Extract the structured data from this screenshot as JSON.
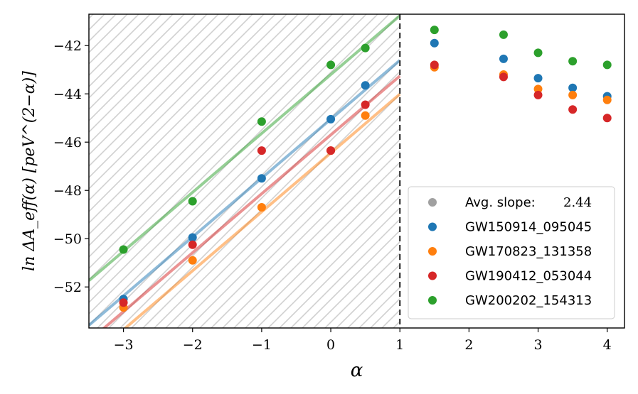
{
  "chart_data": {
    "type": "scatter",
    "title": "",
    "xlabel": "α",
    "ylabel": "ln ΔA_eff(α) [peV^(2−α)]",
    "xlim": [
      -3.5,
      4.25
    ],
    "ylim": [
      -53.7,
      -40.7
    ],
    "xticks": [
      -3,
      -2,
      -1,
      0,
      1,
      2,
      3,
      4
    ],
    "xtick_labels": [
      "−3",
      "−2",
      "−1",
      "0",
      "1",
      "2",
      "3",
      "4"
    ],
    "yticks": [
      -52,
      -50,
      -48,
      -46,
      -44,
      -42
    ],
    "ytick_labels": [
      "−52",
      "−50",
      "−48",
      "−46",
      "−44",
      "−42"
    ],
    "divider_x": 1,
    "hatched_region": [
      -3.5,
      1
    ],
    "fit_slope": 2.44,
    "legend_position": "lower-right",
    "legend": {
      "avg_label": "Avg. slope:",
      "avg_value": "2.44",
      "avg_color": "#a0a0a0"
    },
    "series": [
      {
        "name": "GW150914_095045",
        "color": "#1f77b4",
        "x": [
          -3,
          -2,
          -1,
          0,
          0.5,
          1.5,
          2.5,
          3,
          3.5,
          4
        ],
        "y": [
          -52.5,
          -49.95,
          -47.5,
          -45.05,
          -43.65,
          -41.9,
          -42.55,
          -43.35,
          -43.75,
          -44.1
        ],
        "fit_intercept": -45.05
      },
      {
        "name": "GW170823_131358",
        "color": "#ff7f0e",
        "x": [
          -3,
          -2,
          -1,
          0,
          0.5,
          1.5,
          2.5,
          3,
          3.5,
          4
        ],
        "y": [
          -52.85,
          -50.9,
          -48.7,
          -46.35,
          -44.9,
          -42.9,
          -43.2,
          -43.8,
          -44.05,
          -44.25
        ],
        "fit_intercept": -46.45
      },
      {
        "name": "GW190412_053044",
        "color": "#d62728",
        "x": [
          -3,
          -2,
          -1,
          0,
          0.5,
          1.5,
          2.5,
          3,
          3.5,
          4
        ],
        "y": [
          -52.65,
          -50.25,
          -46.35,
          -46.35,
          -44.45,
          -42.8,
          -43.3,
          -44.05,
          -44.65,
          -45.0
        ],
        "fit_intercept": -45.7
      },
      {
        "name": "GW200202_154313",
        "color": "#2ca02c",
        "x": [
          -3,
          -2,
          -1,
          0,
          0.5,
          1.5,
          2.5,
          3,
          3.5,
          4
        ],
        "y": [
          -50.45,
          -48.45,
          -45.15,
          -42.8,
          -42.1,
          -41.35,
          -41.55,
          -42.3,
          -42.65,
          -42.8
        ],
        "fit_intercept": -43.2
      }
    ]
  }
}
